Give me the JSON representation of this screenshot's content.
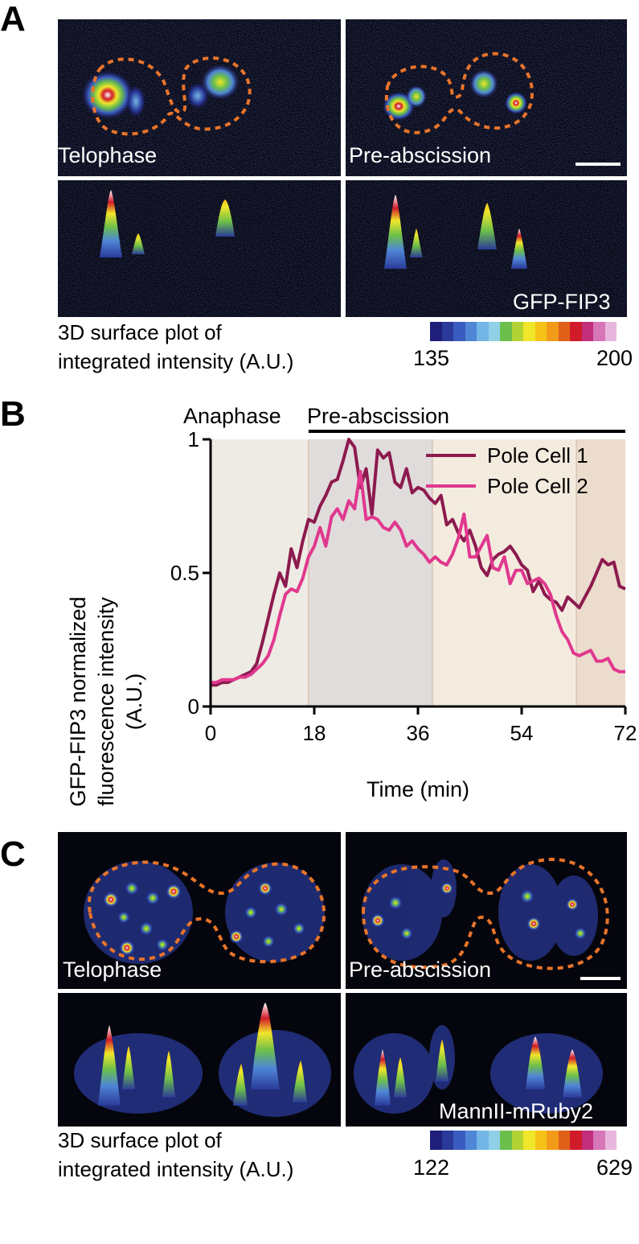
{
  "panelA": {
    "letter": "A",
    "labels": {
      "telophase": "Telophase",
      "preabscission": "Pre-abscission",
      "marker": "GFP-FIP3"
    },
    "caption_line1": "3D surface plot of",
    "caption_line2": "integrated intensity (A.U.)",
    "colorbar": {
      "min": "135",
      "max": "200"
    }
  },
  "panelB": {
    "letter": "B",
    "phase_anaphase": "Anaphase",
    "phase_preabscission": "Pre-abscission"
  },
  "panelC": {
    "letter": "C",
    "labels": {
      "telophase": "Telophase",
      "preabscission": "Pre-abscission",
      "marker": "MannII-mRuby2"
    },
    "caption_line1": "3D surface plot of",
    "caption_line2": "integrated intensity (A.U.)",
    "colorbar": {
      "min": "122",
      "max": "629"
    }
  },
  "colormap": [
    "#1f1f7a",
    "#2a3a9a",
    "#3a5cc0",
    "#4f86d6",
    "#73b6e6",
    "#8fd0e6",
    "#6cbf4a",
    "#b3d334",
    "#f0e62a",
    "#f6c21a",
    "#f29a1a",
    "#e0601a",
    "#d11a2a",
    "#c22e7a",
    "#d676b8",
    "#e8b6dc"
  ],
  "outline_color": "#e8742a",
  "chart_data": {
    "type": "line",
    "title": "",
    "xlabel": "Time (min)",
    "ylabel_line1": "GFP-FIP3 normalized",
    "ylabel_line2": "fluorescence  intensity",
    "ylabel_line3": "(A.U.)",
    "xlim": [
      0,
      72
    ],
    "ylim": [
      0,
      1
    ],
    "xticks": [
      0,
      18,
      36,
      54,
      72
    ],
    "xtick_labels": [
      "0",
      "18",
      "36",
      "54",
      "72"
    ],
    "yticks": [
      0,
      0.5,
      1
    ],
    "ytick_labels": [
      "0",
      "0.5",
      "1"
    ],
    "grid": false,
    "legend_position": "top-right",
    "phase_regions": [
      {
        "start": 0,
        "end": 17,
        "color": "#eeebe4"
      },
      {
        "start": 17,
        "end": 38.5,
        "color": "#e1dcdc"
      },
      {
        "start": 38.5,
        "end": 63.5,
        "color": "#f4ebdf"
      },
      {
        "start": 63.5,
        "end": 72,
        "color": "#ecdccd"
      }
    ],
    "phase_bar": {
      "start": 17,
      "end": 72
    },
    "series": [
      {
        "name": "Pole Cell 1",
        "color": "#8c1a4e",
        "x": [
          0,
          1,
          2,
          3,
          4,
          5,
          6,
          7,
          8,
          9,
          10,
          11,
          12,
          13,
          14,
          15,
          16,
          17,
          18,
          19,
          20,
          21,
          22,
          23,
          24,
          25,
          26,
          27,
          28,
          29,
          30,
          31,
          32,
          33,
          34,
          35,
          36,
          37,
          38,
          39,
          40,
          41,
          42,
          43,
          44,
          45,
          46,
          47,
          48,
          49,
          50,
          51,
          52,
          53,
          54,
          55,
          56,
          57,
          58,
          59,
          60,
          61,
          62,
          63,
          64,
          65,
          66,
          67,
          68,
          69,
          70,
          71,
          72
        ],
        "values": [
          0.08,
          0.08,
          0.09,
          0.09,
          0.1,
          0.11,
          0.12,
          0.13,
          0.16,
          0.24,
          0.33,
          0.42,
          0.5,
          0.45,
          0.59,
          0.52,
          0.62,
          0.7,
          0.69,
          0.75,
          0.79,
          0.84,
          0.85,
          0.92,
          1.0,
          0.97,
          0.82,
          0.89,
          0.72,
          0.96,
          0.93,
          0.95,
          0.84,
          0.82,
          0.89,
          0.8,
          0.82,
          0.81,
          0.78,
          0.76,
          0.79,
          0.68,
          0.7,
          0.65,
          0.62,
          0.66,
          0.6,
          0.52,
          0.49,
          0.55,
          0.57,
          0.58,
          0.6,
          0.57,
          0.53,
          0.51,
          0.43,
          0.47,
          0.42,
          0.4,
          0.39,
          0.36,
          0.41,
          0.39,
          0.37,
          0.41,
          0.45,
          0.5,
          0.55,
          0.53,
          0.54,
          0.45,
          0.44
        ]
      },
      {
        "name": "Pole Cell 2",
        "color": "#e0388e",
        "x": [
          0,
          1,
          2,
          3,
          4,
          5,
          6,
          7,
          8,
          9,
          10,
          11,
          12,
          13,
          14,
          15,
          16,
          17,
          18,
          19,
          20,
          21,
          22,
          23,
          24,
          25,
          26,
          27,
          28,
          29,
          30,
          31,
          32,
          33,
          34,
          35,
          36,
          37,
          38,
          39,
          40,
          41,
          42,
          43,
          44,
          45,
          46,
          47,
          48,
          49,
          50,
          51,
          52,
          53,
          54,
          55,
          56,
          57,
          58,
          59,
          60,
          61,
          62,
          63,
          64,
          65,
          66,
          67,
          68,
          69,
          70,
          71,
          72
        ],
        "values": [
          0.09,
          0.09,
          0.1,
          0.1,
          0.1,
          0.11,
          0.11,
          0.12,
          0.14,
          0.16,
          0.19,
          0.25,
          0.34,
          0.42,
          0.44,
          0.43,
          0.48,
          0.56,
          0.6,
          0.67,
          0.6,
          0.71,
          0.74,
          0.7,
          0.77,
          0.74,
          0.88,
          0.7,
          0.71,
          0.7,
          0.67,
          0.66,
          0.69,
          0.66,
          0.6,
          0.62,
          0.59,
          0.57,
          0.54,
          0.56,
          0.54,
          0.53,
          0.57,
          0.63,
          0.72,
          0.56,
          0.56,
          0.6,
          0.64,
          0.52,
          0.51,
          0.56,
          0.46,
          0.51,
          0.51,
          0.46,
          0.47,
          0.48,
          0.46,
          0.42,
          0.34,
          0.28,
          0.25,
          0.2,
          0.19,
          0.2,
          0.21,
          0.17,
          0.17,
          0.18,
          0.14,
          0.13,
          0.13
        ]
      }
    ]
  }
}
